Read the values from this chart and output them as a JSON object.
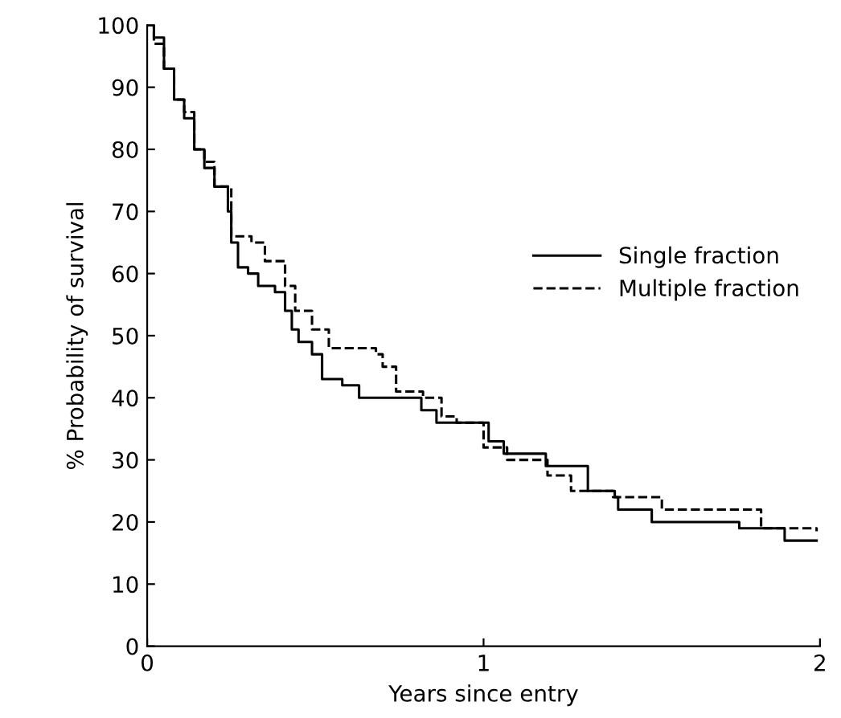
{
  "chart_data": {
    "type": "step",
    "xlabel": "Years since entry",
    "ylabel": "% Probability of survival",
    "xlim": [
      0,
      2
    ],
    "ylim": [
      0,
      100
    ],
    "xticks": [
      0,
      1,
      2
    ],
    "yticks": [
      0,
      10,
      20,
      30,
      40,
      50,
      60,
      70,
      80,
      90,
      100
    ],
    "grid": false,
    "legend": "right",
    "series": [
      {
        "name": "Single fraction",
        "color": "#000000",
        "line_style": "solid",
        "x": [
          0,
          0.02,
          0.05,
          0.08,
          0.11,
          0.14,
          0.17,
          0.2,
          0.24,
          0.25,
          0.27,
          0.3,
          0.33,
          0.38,
          0.41,
          0.43,
          0.45,
          0.49,
          0.52,
          0.58,
          0.63,
          0.815,
          0.86,
          1.015,
          1.06,
          1.185,
          1.31,
          1.39,
          1.4,
          1.5,
          1.76,
          1.895,
          1.99
        ],
        "values": [
          100,
          98,
          93,
          88,
          85,
          80,
          77,
          74,
          70,
          65,
          61,
          60,
          58,
          57,
          54,
          51,
          49,
          47,
          43,
          42,
          40,
          38,
          36,
          33,
          31,
          29,
          25,
          24,
          22,
          20,
          19,
          17,
          17
        ]
      },
      {
        "name": "Multiple fraction",
        "color": "#000000",
        "line_style": "dashed",
        "x": [
          0,
          0.02,
          0.05,
          0.08,
          0.11,
          0.14,
          0.17,
          0.2,
          0.25,
          0.31,
          0.35,
          0.41,
          0.44,
          0.49,
          0.54,
          0.68,
          0.7,
          0.74,
          0.82,
          0.875,
          0.92,
          1.0,
          1.07,
          1.19,
          1.26,
          1.385,
          1.53,
          1.825,
          1.99
        ],
        "values": [
          100,
          97,
          93,
          88,
          86,
          80,
          78,
          74,
          66,
          65,
          62,
          58,
          54,
          51,
          48,
          47,
          45,
          41,
          40,
          37,
          36,
          32,
          30,
          27.5,
          25,
          24,
          22,
          19,
          18.5
        ]
      }
    ]
  }
}
